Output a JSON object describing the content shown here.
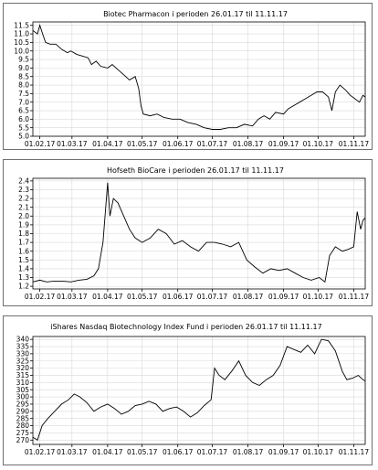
{
  "chart_data": [
    {
      "type": "line",
      "title": "Biotec Pharmacon i perioden 26.01.17 til 11.11.17",
      "x_tick_labels": [
        "01.02.17",
        "01.03.17",
        "01.04.17",
        "01.05.17",
        "01.06.17",
        "01.07.17",
        "01.08.17",
        "01.09.17",
        "01.10.17",
        "01.11.17"
      ],
      "x_range": [
        "26.01.17",
        "11.11.17"
      ],
      "y_tick_labels": [
        "5.0",
        "5.5",
        "6.0",
        "6.5",
        "7.0",
        "7.5",
        "8.0",
        "8.5",
        "9.0",
        "9.5",
        "10.0",
        "10.5",
        "11.0",
        "11.5"
      ],
      "ylim": [
        5.0,
        11.7
      ],
      "grid": true,
      "series": [
        {
          "points": [
            [
              "26.01.17",
              11.2
            ],
            [
              "30.01.17",
              11.0
            ],
            [
              "01.02.17",
              11.5
            ],
            [
              "04.02.17",
              10.9
            ],
            [
              "06.02.17",
              10.5
            ],
            [
              "10.02.17",
              10.4
            ],
            [
              "15.02.17",
              10.4
            ],
            [
              "20.02.17",
              10.1
            ],
            [
              "25.02.17",
              9.9
            ],
            [
              "28.02.17",
              10.0
            ],
            [
              "05.03.17",
              9.8
            ],
            [
              "10.03.17",
              9.7
            ],
            [
              "15.03.17",
              9.6
            ],
            [
              "18.03.17",
              9.2
            ],
            [
              "22.03.17",
              9.4
            ],
            [
              "26.03.17",
              9.1
            ],
            [
              "01.04.17",
              9.0
            ],
            [
              "05.04.17",
              9.2
            ],
            [
              "10.04.17",
              8.9
            ],
            [
              "15.04.17",
              8.6
            ],
            [
              "20.04.17",
              8.3
            ],
            [
              "25.04.17",
              8.5
            ],
            [
              "28.04.17",
              7.8
            ],
            [
              "30.04.17",
              6.8
            ],
            [
              "02.05.17",
              6.3
            ],
            [
              "08.05.17",
              6.2
            ],
            [
              "14.05.17",
              6.3
            ],
            [
              "20.05.17",
              6.1
            ],
            [
              "27.05.17",
              6.0
            ],
            [
              "03.06.17",
              6.0
            ],
            [
              "10.06.17",
              5.8
            ],
            [
              "17.06.17",
              5.7
            ],
            [
              "24.06.17",
              5.5
            ],
            [
              "01.07.17",
              5.4
            ],
            [
              "08.07.17",
              5.4
            ],
            [
              "15.07.17",
              5.5
            ],
            [
              "22.07.17",
              5.5
            ],
            [
              "29.07.17",
              5.7
            ],
            [
              "05.08.17",
              5.6
            ],
            [
              "10.08.17",
              6.0
            ],
            [
              "15.08.17",
              6.2
            ],
            [
              "20.08.17",
              6.0
            ],
            [
              "25.08.17",
              6.4
            ],
            [
              "01.09.17",
              6.3
            ],
            [
              "05.09.17",
              6.6
            ],
            [
              "10.09.17",
              6.8
            ],
            [
              "15.09.17",
              7.0
            ],
            [
              "20.09.17",
              7.2
            ],
            [
              "25.09.17",
              7.4
            ],
            [
              "30.09.17",
              7.6
            ],
            [
              "05.10.17",
              7.6
            ],
            [
              "10.10.17",
              7.3
            ],
            [
              "13.10.17",
              6.5
            ],
            [
              "16.10.17",
              7.6
            ],
            [
              "20.10.17",
              8.0
            ],
            [
              "25.10.17",
              7.7
            ],
            [
              "29.10.17",
              7.4
            ],
            [
              "02.11.17",
              7.2
            ],
            [
              "06.11.17",
              7.0
            ],
            [
              "09.11.17",
              7.4
            ],
            [
              "11.11.17",
              7.3
            ]
          ]
        }
      ]
    },
    {
      "type": "line",
      "title": "Hofseth BioCare i perioden 26.01.17 til 11.11.17",
      "x_tick_labels": [
        "01.02.17",
        "01.03.17",
        "01.04.17",
        "01.05.17",
        "01.06.17",
        "01.07.17",
        "01.08.17",
        "01.09.17",
        "01.10.17",
        "01.11.17"
      ],
      "x_range": [
        "26.01.17",
        "11.11.17"
      ],
      "y_tick_labels": [
        "1.2",
        "1.3",
        "1.4",
        "1.5",
        "1.6",
        "1.7",
        "1.8",
        "1.9",
        "2.0",
        "2.1",
        "2.2",
        "2.3",
        "2.4"
      ],
      "ylim": [
        1.17,
        2.43
      ],
      "grid": true,
      "series": [
        {
          "points": [
            [
              "26.01.17",
              1.25
            ],
            [
              "01.02.17",
              1.27
            ],
            [
              "07.02.17",
              1.25
            ],
            [
              "14.02.17",
              1.26
            ],
            [
              "21.02.17",
              1.26
            ],
            [
              "28.02.17",
              1.25
            ],
            [
              "07.03.17",
              1.27
            ],
            [
              "14.03.17",
              1.28
            ],
            [
              "20.03.17",
              1.32
            ],
            [
              "24.03.17",
              1.4
            ],
            [
              "28.03.17",
              1.7
            ],
            [
              "01.04.17",
              2.38
            ],
            [
              "03.04.17",
              2.0
            ],
            [
              "06.04.17",
              2.2
            ],
            [
              "10.04.17",
              2.15
            ],
            [
              "15.04.17",
              2.0
            ],
            [
              "20.04.17",
              1.85
            ],
            [
              "25.04.17",
              1.75
            ],
            [
              "01.05.17",
              1.7
            ],
            [
              "08.05.17",
              1.75
            ],
            [
              "15.05.17",
              1.85
            ],
            [
              "22.05.17",
              1.8
            ],
            [
              "29.05.17",
              1.68
            ],
            [
              "05.06.17",
              1.72
            ],
            [
              "12.06.17",
              1.65
            ],
            [
              "19.06.17",
              1.6
            ],
            [
              "26.06.17",
              1.7
            ],
            [
              "03.07.17",
              1.7
            ],
            [
              "10.07.17",
              1.68
            ],
            [
              "17.07.17",
              1.65
            ],
            [
              "24.07.17",
              1.7
            ],
            [
              "31.07.17",
              1.5
            ],
            [
              "07.08.17",
              1.42
            ],
            [
              "14.08.17",
              1.35
            ],
            [
              "21.08.17",
              1.4
            ],
            [
              "28.08.17",
              1.38
            ],
            [
              "04.09.17",
              1.4
            ],
            [
              "11.09.17",
              1.35
            ],
            [
              "18.09.17",
              1.3
            ],
            [
              "25.09.17",
              1.27
            ],
            [
              "02.10.17",
              1.3
            ],
            [
              "07.10.17",
              1.25
            ],
            [
              "11.10.17",
              1.55
            ],
            [
              "16.10.17",
              1.65
            ],
            [
              "22.10.17",
              1.6
            ],
            [
              "27.10.17",
              1.62
            ],
            [
              "01.11.17",
              1.65
            ],
            [
              "04.11.17",
              2.05
            ],
            [
              "07.11.17",
              1.85
            ],
            [
              "09.11.17",
              1.95
            ],
            [
              "11.11.17",
              1.98
            ]
          ]
        }
      ]
    },
    {
      "type": "line",
      "title": "iShares Nasdaq Biotechnology Index Fund i perioden 26.01.17 til 11.11.17",
      "x_tick_labels": [
        "01.02.17",
        "01.03.17",
        "01.04.17",
        "01.05.17",
        "01.06.17",
        "01.07.17",
        "01.08.17",
        "01.09.17",
        "01.10.17",
        "01.11.17"
      ],
      "x_range": [
        "26.01.17",
        "11.11.17"
      ],
      "y_tick_labels": [
        "270",
        "275",
        "280",
        "285",
        "290",
        "295",
        "300",
        "305",
        "310",
        "315",
        "320",
        "325",
        "330",
        "335",
        "340"
      ],
      "ylim": [
        267,
        342
      ],
      "grid": true,
      "series": [
        {
          "points": [
            [
              "26.01.17",
              272
            ],
            [
              "30.01.17",
              270
            ],
            [
              "03.02.17",
              280
            ],
            [
              "08.02.17",
              285
            ],
            [
              "14.02.17",
              290
            ],
            [
              "20.02.17",
              295
            ],
            [
              "26.02.17",
              298
            ],
            [
              "03.03.17",
              302
            ],
            [
              "08.03.17",
              300
            ],
            [
              "14.03.17",
              296
            ],
            [
              "20.03.17",
              290
            ],
            [
              "26.03.17",
              293
            ],
            [
              "01.04.17",
              295
            ],
            [
              "07.04.17",
              292
            ],
            [
              "13.04.17",
              288
            ],
            [
              "19.04.17",
              290
            ],
            [
              "25.04.17",
              294
            ],
            [
              "01.05.17",
              295
            ],
            [
              "07.05.17",
              297
            ],
            [
              "13.05.17",
              295
            ],
            [
              "19.05.17",
              290
            ],
            [
              "25.05.17",
              292
            ],
            [
              "31.05.17",
              293
            ],
            [
              "06.06.17",
              290
            ],
            [
              "12.06.17",
              286
            ],
            [
              "18.06.17",
              289
            ],
            [
              "24.06.17",
              294
            ],
            [
              "30.06.17",
              298
            ],
            [
              "03.07.17",
              320
            ],
            [
              "07.07.17",
              315
            ],
            [
              "12.07.17",
              312
            ],
            [
              "18.07.17",
              318
            ],
            [
              "24.07.17",
              325
            ],
            [
              "30.07.17",
              315
            ],
            [
              "05.08.17",
              310
            ],
            [
              "11.08.17",
              308
            ],
            [
              "17.08.17",
              312
            ],
            [
              "23.08.17",
              315
            ],
            [
              "29.08.17",
              322
            ],
            [
              "04.09.17",
              335
            ],
            [
              "10.09.17",
              333
            ],
            [
              "16.09.17",
              331
            ],
            [
              "22.09.17",
              336
            ],
            [
              "28.09.17",
              330
            ],
            [
              "04.10.17",
              340
            ],
            [
              "10.10.17",
              339
            ],
            [
              "16.10.17",
              332
            ],
            [
              "22.10.17",
              318
            ],
            [
              "26.10.17",
              312
            ],
            [
              "31.10.17",
              313
            ],
            [
              "05.11.17",
              315
            ],
            [
              "09.11.17",
              312
            ],
            [
              "11.11.17",
              311
            ]
          ]
        }
      ]
    }
  ]
}
